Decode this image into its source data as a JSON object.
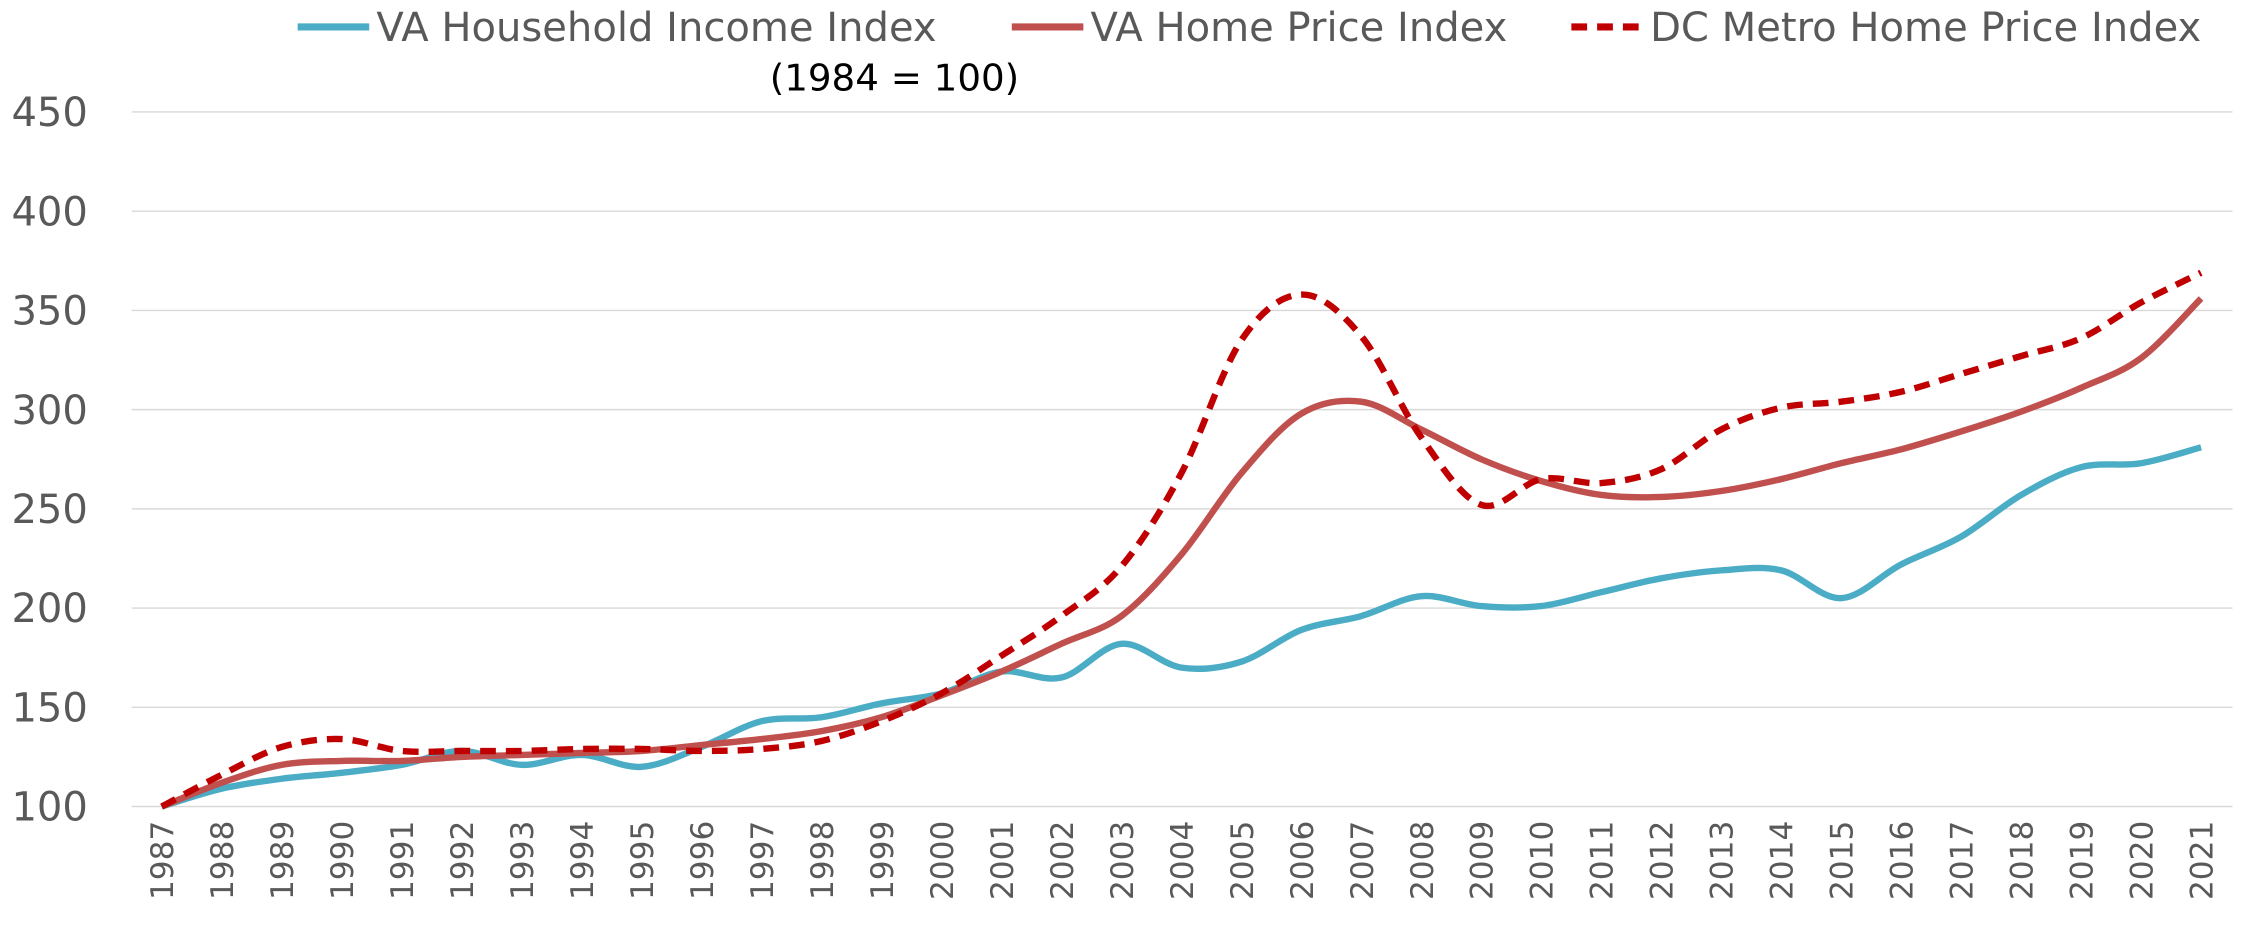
{
  "chart_data": {
    "type": "line",
    "subtitle": "(1984 = 100)",
    "x": [
      1987,
      1988,
      1989,
      1990,
      1991,
      1992,
      1993,
      1994,
      1995,
      1996,
      1997,
      1998,
      1999,
      2000,
      2001,
      2002,
      2003,
      2004,
      2005,
      2006,
      2007,
      2008,
      2009,
      2010,
      2011,
      2012,
      2013,
      2014,
      2015,
      2016,
      2017,
      2018,
      2019,
      2020,
      2021
    ],
    "xlim": [
      1987,
      2021
    ],
    "ylim": [
      100,
      450
    ],
    "yticks": [
      100,
      150,
      200,
      250,
      300,
      350,
      400,
      450
    ],
    "grid": true,
    "legend": "top",
    "series": [
      {
        "name": "VA Household Income Index",
        "color": "#4bacc6",
        "dash": false,
        "values": [
          100,
          109,
          114,
          117,
          121,
          128,
          121,
          126,
          120,
          130,
          143,
          145,
          152,
          157,
          168,
          165,
          182,
          170,
          173,
          189,
          196,
          206,
          201,
          201,
          208,
          215,
          219,
          219,
          205,
          222,
          236,
          257,
          271,
          273,
          281
        ]
      },
      {
        "name": "VA Home Price Index",
        "color": "#c0504d",
        "dash": false,
        "values": [
          100,
          112,
          121,
          123,
          123,
          125,
          126,
          127,
          128,
          131,
          134,
          138,
          145,
          156,
          168,
          182,
          196,
          227,
          268,
          298,
          304,
          290,
          275,
          264,
          257,
          256,
          259,
          265,
          273,
          280,
          289,
          299,
          311,
          326,
          356
        ]
      },
      {
        "name": "DC Metro Home Price Index",
        "color": "#c00000",
        "dash": true,
        "values": [
          100,
          116,
          130,
          134,
          128,
          128,
          128,
          129,
          129,
          128,
          129,
          133,
          143,
          157,
          176,
          196,
          221,
          268,
          335,
          358,
          337,
          286,
          252,
          265,
          263,
          270,
          290,
          301,
          304,
          309,
          318,
          327,
          336,
          354,
          369
        ]
      }
    ]
  }
}
